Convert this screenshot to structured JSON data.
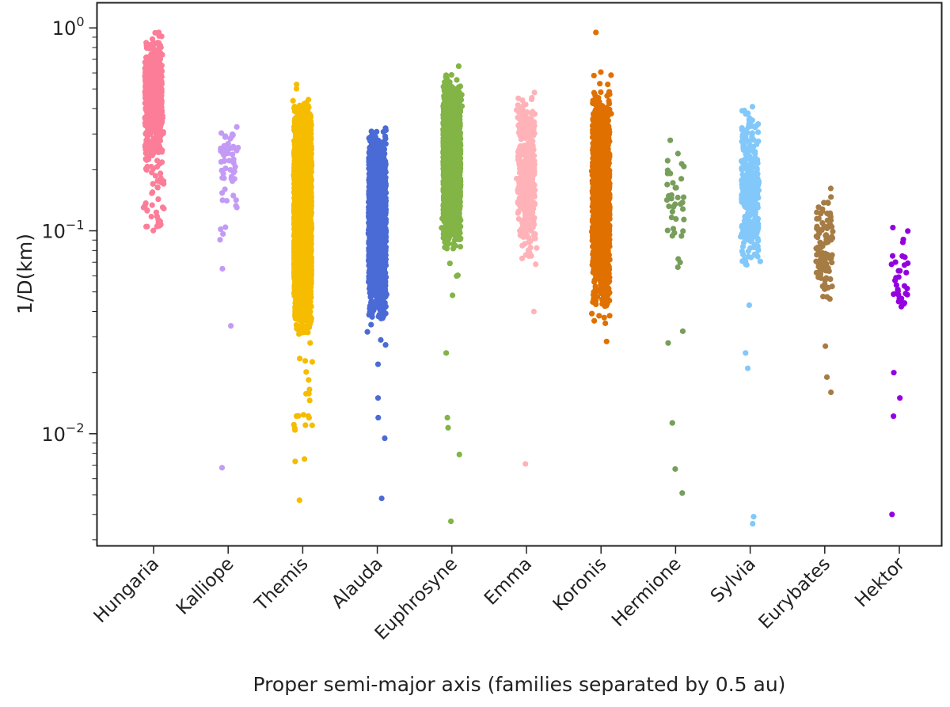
{
  "chart_data": {
    "type": "scatter",
    "subtype": "strip",
    "title": "",
    "xlabel": "Proper semi-major axis (families separated by 0.5 au)",
    "ylabel": "1/D(km)",
    "yscale": "log",
    "ylim": [
      0.0028,
      1.33
    ],
    "grid": false,
    "legend": "none",
    "yticks": [
      {
        "value": 1,
        "base": "10",
        "exp": "0"
      },
      {
        "value": 0.1,
        "base": "10",
        "exp": "−1"
      },
      {
        "value": 0.01,
        "base": "10",
        "exp": "−2"
      }
    ],
    "categories": [
      "Hungaria",
      "Kalliope",
      "Themis",
      "Alauda",
      "Euphrosyne",
      "Emma",
      "Koronis",
      "Hermione",
      "Sylvia",
      "Eurybates",
      "Hektor"
    ],
    "series": [
      {
        "category": "Hungaria",
        "color": "#fc7d98",
        "core_range": [
          0.2,
          1.0
        ],
        "core_count": 420,
        "sparse_range": [
          0.1,
          0.45
        ],
        "sparse_count": 60,
        "outliers": [
          0.95,
          0.11,
          0.105
        ]
      },
      {
        "category": "Kalliope",
        "color": "#c39bf5",
        "core_range": [
          0.14,
          0.37
        ],
        "core_count": 45,
        "sparse_range": [
          0.09,
          0.3
        ],
        "sparse_count": 15,
        "outliers": [
          0.065,
          0.034,
          0.0068
        ]
      },
      {
        "category": "Themis",
        "color": "#f5bc00",
        "core_range": [
          0.03,
          0.45
        ],
        "core_count": 3200,
        "sparse_range": [
          0.01,
          0.62
        ],
        "sparse_count": 60,
        "outliers": [
          0.0073,
          0.0075,
          0.0047
        ]
      },
      {
        "category": "Alauda",
        "color": "#4a6bd6",
        "core_range": [
          0.035,
          0.33
        ],
        "core_count": 1500,
        "sparse_range": [
          0.025,
          0.34
        ],
        "sparse_count": 20,
        "outliers": [
          0.022,
          0.015,
          0.012,
          0.0095,
          0.0048
        ]
      },
      {
        "category": "Euphrosyne",
        "color": "#82b446",
        "core_range": [
          0.08,
          0.6
        ],
        "core_count": 1800,
        "sparse_range": [
          0.045,
          0.65
        ],
        "sparse_count": 25,
        "outliers": [
          0.025,
          0.012,
          0.0107,
          0.0079,
          0.0037
        ]
      },
      {
        "category": "Emma",
        "color": "#ffb3b8",
        "core_range": [
          0.07,
          0.52
        ],
        "core_count": 380,
        "sparse_range": [
          0.065,
          0.52
        ],
        "sparse_count": 10,
        "outliers": [
          0.04,
          0.0071
        ]
      },
      {
        "category": "Koronis",
        "color": "#e07000",
        "core_range": [
          0.04,
          0.5
        ],
        "core_count": 1300,
        "sparse_range": [
          0.025,
          0.65
        ],
        "sparse_count": 30,
        "outliers": [
          0.95,
          0.035
        ]
      },
      {
        "category": "Hermione",
        "color": "#779e5a",
        "core_range": [
          0.06,
          0.31
        ],
        "core_count": 40,
        "sparse_range": [
          0.06,
          0.31
        ],
        "sparse_count": 0,
        "outliers": [
          0.032,
          0.028,
          0.0113,
          0.0067,
          0.0051
        ]
      },
      {
        "category": "Sylvia",
        "color": "#82c8fa",
        "core_range": [
          0.06,
          0.42
        ],
        "core_count": 330,
        "sparse_range": [
          0.06,
          0.46
        ],
        "sparse_count": 10,
        "outliers": [
          0.043,
          0.025,
          0.021,
          0.0039,
          0.0036
        ]
      },
      {
        "category": "Eurybates",
        "color": "#a67c45",
        "core_range": [
          0.045,
          0.17
        ],
        "core_count": 110,
        "sparse_range": [
          0.045,
          0.17
        ],
        "sparse_count": 0,
        "outliers": [
          0.027,
          0.019,
          0.016
        ]
      },
      {
        "category": "Hektor",
        "color": "#9400e0",
        "core_range": [
          0.032,
          0.115
        ],
        "core_count": 35,
        "sparse_range": [
          0.032,
          0.115
        ],
        "sparse_count": 0,
        "outliers": [
          0.02,
          0.015,
          0.0122,
          0.004
        ]
      }
    ]
  }
}
